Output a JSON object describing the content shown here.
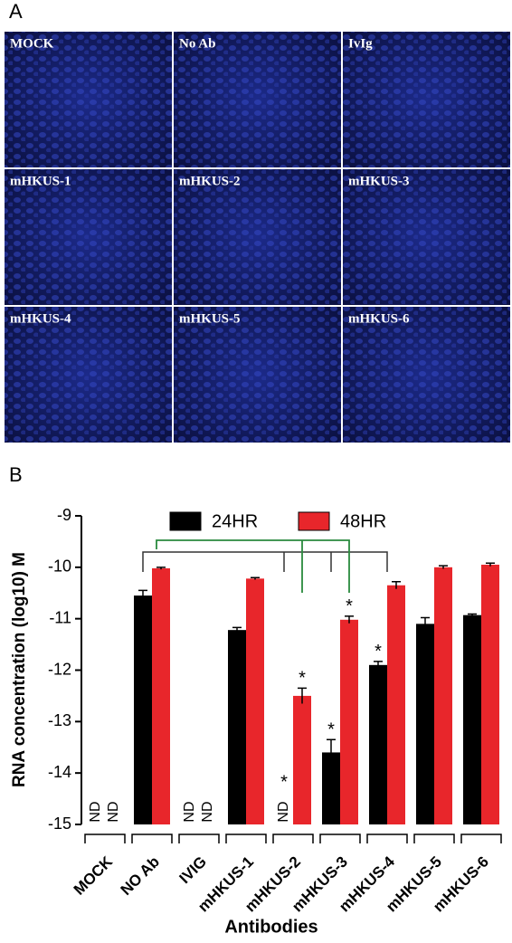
{
  "panel_a": {
    "label": "A",
    "images": [
      "MOCK",
      "No Ab",
      "IvIg",
      "mHKUS-1",
      "mHKUS-2",
      "mHKUS-3",
      "mHKUS-4",
      "mHKUS-5",
      "mHKUS-6"
    ]
  },
  "chart_data": {
    "type": "bar",
    "panel_label": "B",
    "y_label": "RNA concentration (log10) M",
    "x_label": "Antibodies",
    "categories": [
      "MOCK",
      "NO Ab",
      "IVIG",
      "mHKUS-1",
      "mHKUS-2",
      "mHKUS-3",
      "mHKUS-4",
      "mHKUS-5",
      "mHKUS-6"
    ],
    "series": [
      {
        "name": "24HR",
        "color": "#000000",
        "values": [
          null,
          -10.55,
          null,
          -11.22,
          null,
          -13.6,
          -11.9,
          -11.1,
          -10.93
        ],
        "errors": [
          null,
          0.1,
          null,
          0.05,
          null,
          0.25,
          0.07,
          0.12,
          0.02
        ],
        "value_labels": [
          "ND",
          null,
          "ND",
          null,
          "ND",
          null,
          null,
          null,
          null
        ],
        "markers": [
          null,
          null,
          null,
          null,
          "*",
          "*",
          "*",
          null,
          null
        ]
      },
      {
        "name": "48HR",
        "color": "#e8262b",
        "values": [
          null,
          -10.02,
          null,
          -10.22,
          -12.5,
          -11.02,
          -10.35,
          -10.0,
          -9.95
        ],
        "errors": [
          null,
          0.02,
          null,
          0.02,
          0.15,
          0.07,
          0.07,
          0.03,
          0.03
        ],
        "value_labels": [
          "ND",
          null,
          "ND",
          null,
          null,
          null,
          null,
          null,
          null
        ],
        "markers": [
          null,
          null,
          null,
          null,
          "*",
          "*",
          null,
          null,
          null
        ]
      }
    ],
    "ylim": [
      -15,
      -9
    ],
    "yticks": [
      -9,
      -10,
      -11,
      -12,
      -13,
      -14,
      -15
    ]
  }
}
